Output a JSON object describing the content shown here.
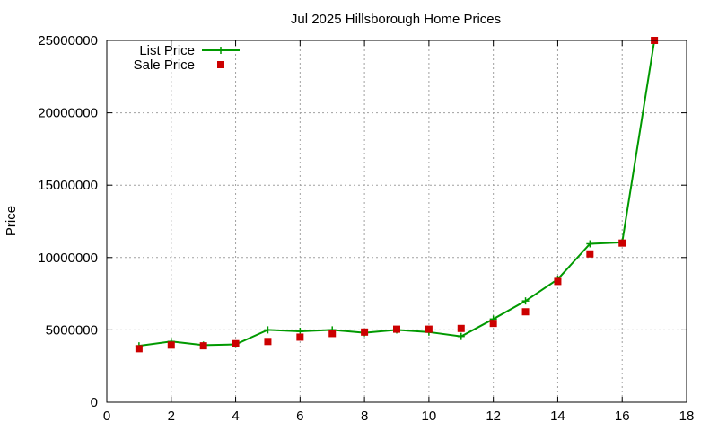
{
  "chart_data": {
    "type": "line",
    "title": "Jul 2025 Hillsborough Home Prices",
    "xlabel": "",
    "ylabel": "Price",
    "xlim": [
      0,
      18
    ],
    "ylim": [
      0,
      25000000
    ],
    "x_ticks": [
      0,
      2,
      4,
      6,
      8,
      10,
      12,
      14,
      16,
      18
    ],
    "y_ticks": [
      0,
      5000000,
      10000000,
      15000000,
      20000000,
      25000000
    ],
    "grid": true,
    "legend_position": "top-left",
    "series": [
      {
        "name": "List Price",
        "style": "line-plus",
        "color": "#009900",
        "x": [
          1,
          2,
          3,
          4,
          5,
          6,
          7,
          8,
          9,
          10,
          11,
          12,
          13,
          14,
          15,
          16,
          17
        ],
        "y": [
          3900000,
          4200000,
          3950000,
          4000000,
          5000000,
          4900000,
          5000000,
          4800000,
          5000000,
          4850000,
          4550000,
          5750000,
          7000000,
          8500000,
          10950000,
          11050000,
          25000000
        ]
      },
      {
        "name": "Sale Price",
        "style": "square",
        "color": "#cc0000",
        "x": [
          1,
          2,
          3,
          4,
          5,
          6,
          7,
          8,
          9,
          10,
          11,
          12,
          13,
          14,
          15,
          16,
          17
        ],
        "y": [
          3700000,
          3950000,
          3900000,
          4050000,
          4200000,
          4500000,
          4750000,
          4850000,
          5050000,
          5050000,
          5100000,
          5450000,
          6250000,
          8350000,
          10250000,
          11000000,
          25000000
        ]
      }
    ]
  }
}
